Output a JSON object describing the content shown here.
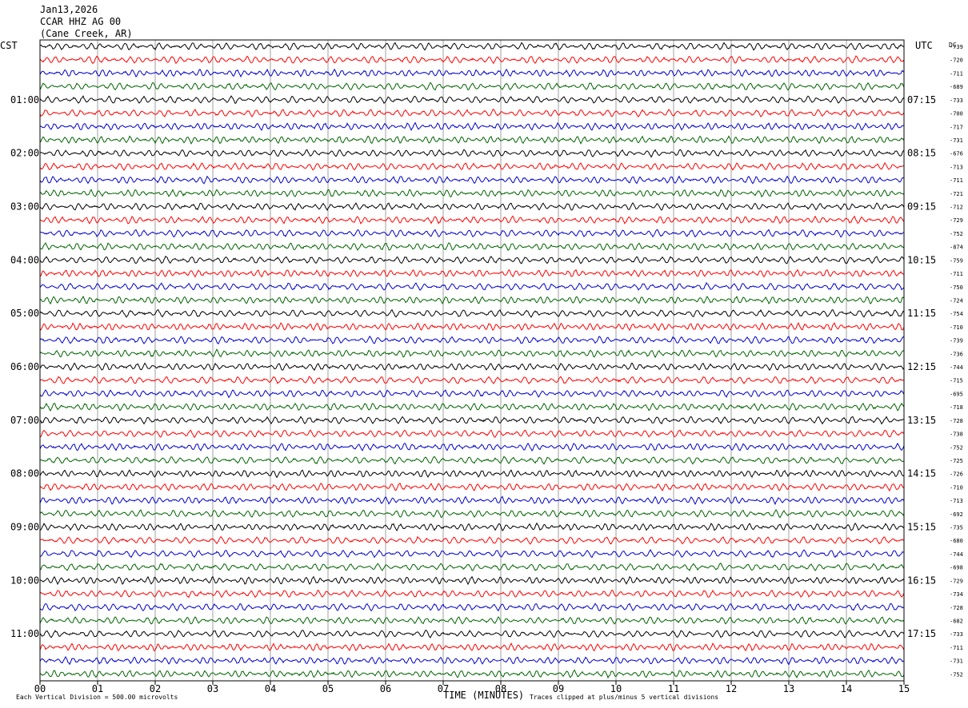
{
  "header": {
    "date": "Jan13,2026",
    "station": "CCAR HHZ AG 00",
    "location": "(Cane Creek, AR)"
  },
  "labels": {
    "left_tz": "CST",
    "right_tz": "UTC",
    "dc_header": "DC",
    "xlabel": "TIME (MINUTES)",
    "scale_note": "Each Vertical Division =  500.00 microvolts",
    "clip_note": "Traces clipped at plus/minus 5 vertical divisions"
  },
  "chart_data": {
    "type": "line",
    "title": "CCAR HHZ AG 00",
    "xlabel": "TIME (MINUTES)",
    "xlim": [
      0,
      15
    ],
    "x_ticks": [
      "00",
      "01",
      "02",
      "03",
      "04",
      "05",
      "06",
      "07",
      "08",
      "09",
      "10",
      "11",
      "12",
      "13",
      "14",
      "15"
    ],
    "lines_per_hour": 4,
    "line_colors": [
      "#000000",
      "#ff0000",
      "#0000cc",
      "#006400"
    ],
    "left_hour_labels": [
      "01:00",
      "02:00",
      "03:00",
      "04:00",
      "05:00",
      "06:00",
      "07:00",
      "08:00",
      "09:00",
      "10:00",
      "11:00"
    ],
    "left_label_first_row": 4,
    "right_hour_labels": [
      "07:15",
      "08:15",
      "09:15",
      "10:15",
      "11:15",
      "12:15",
      "13:15",
      "14:15",
      "15:15",
      "16:15",
      "17:15"
    ],
    "right_label_first_row": 4,
    "dc_offsets": [
      739,
      720,
      711,
      689,
      733,
      700,
      717,
      731,
      676,
      713,
      711,
      721,
      712,
      729,
      752,
      874,
      759,
      711,
      750,
      724,
      754,
      710,
      739,
      736,
      744,
      715,
      695,
      718,
      728,
      738,
      752,
      725,
      726,
      710,
      713,
      692,
      735,
      680,
      744,
      698,
      729,
      734,
      728,
      682,
      733,
      711,
      731,
      752
    ]
  }
}
